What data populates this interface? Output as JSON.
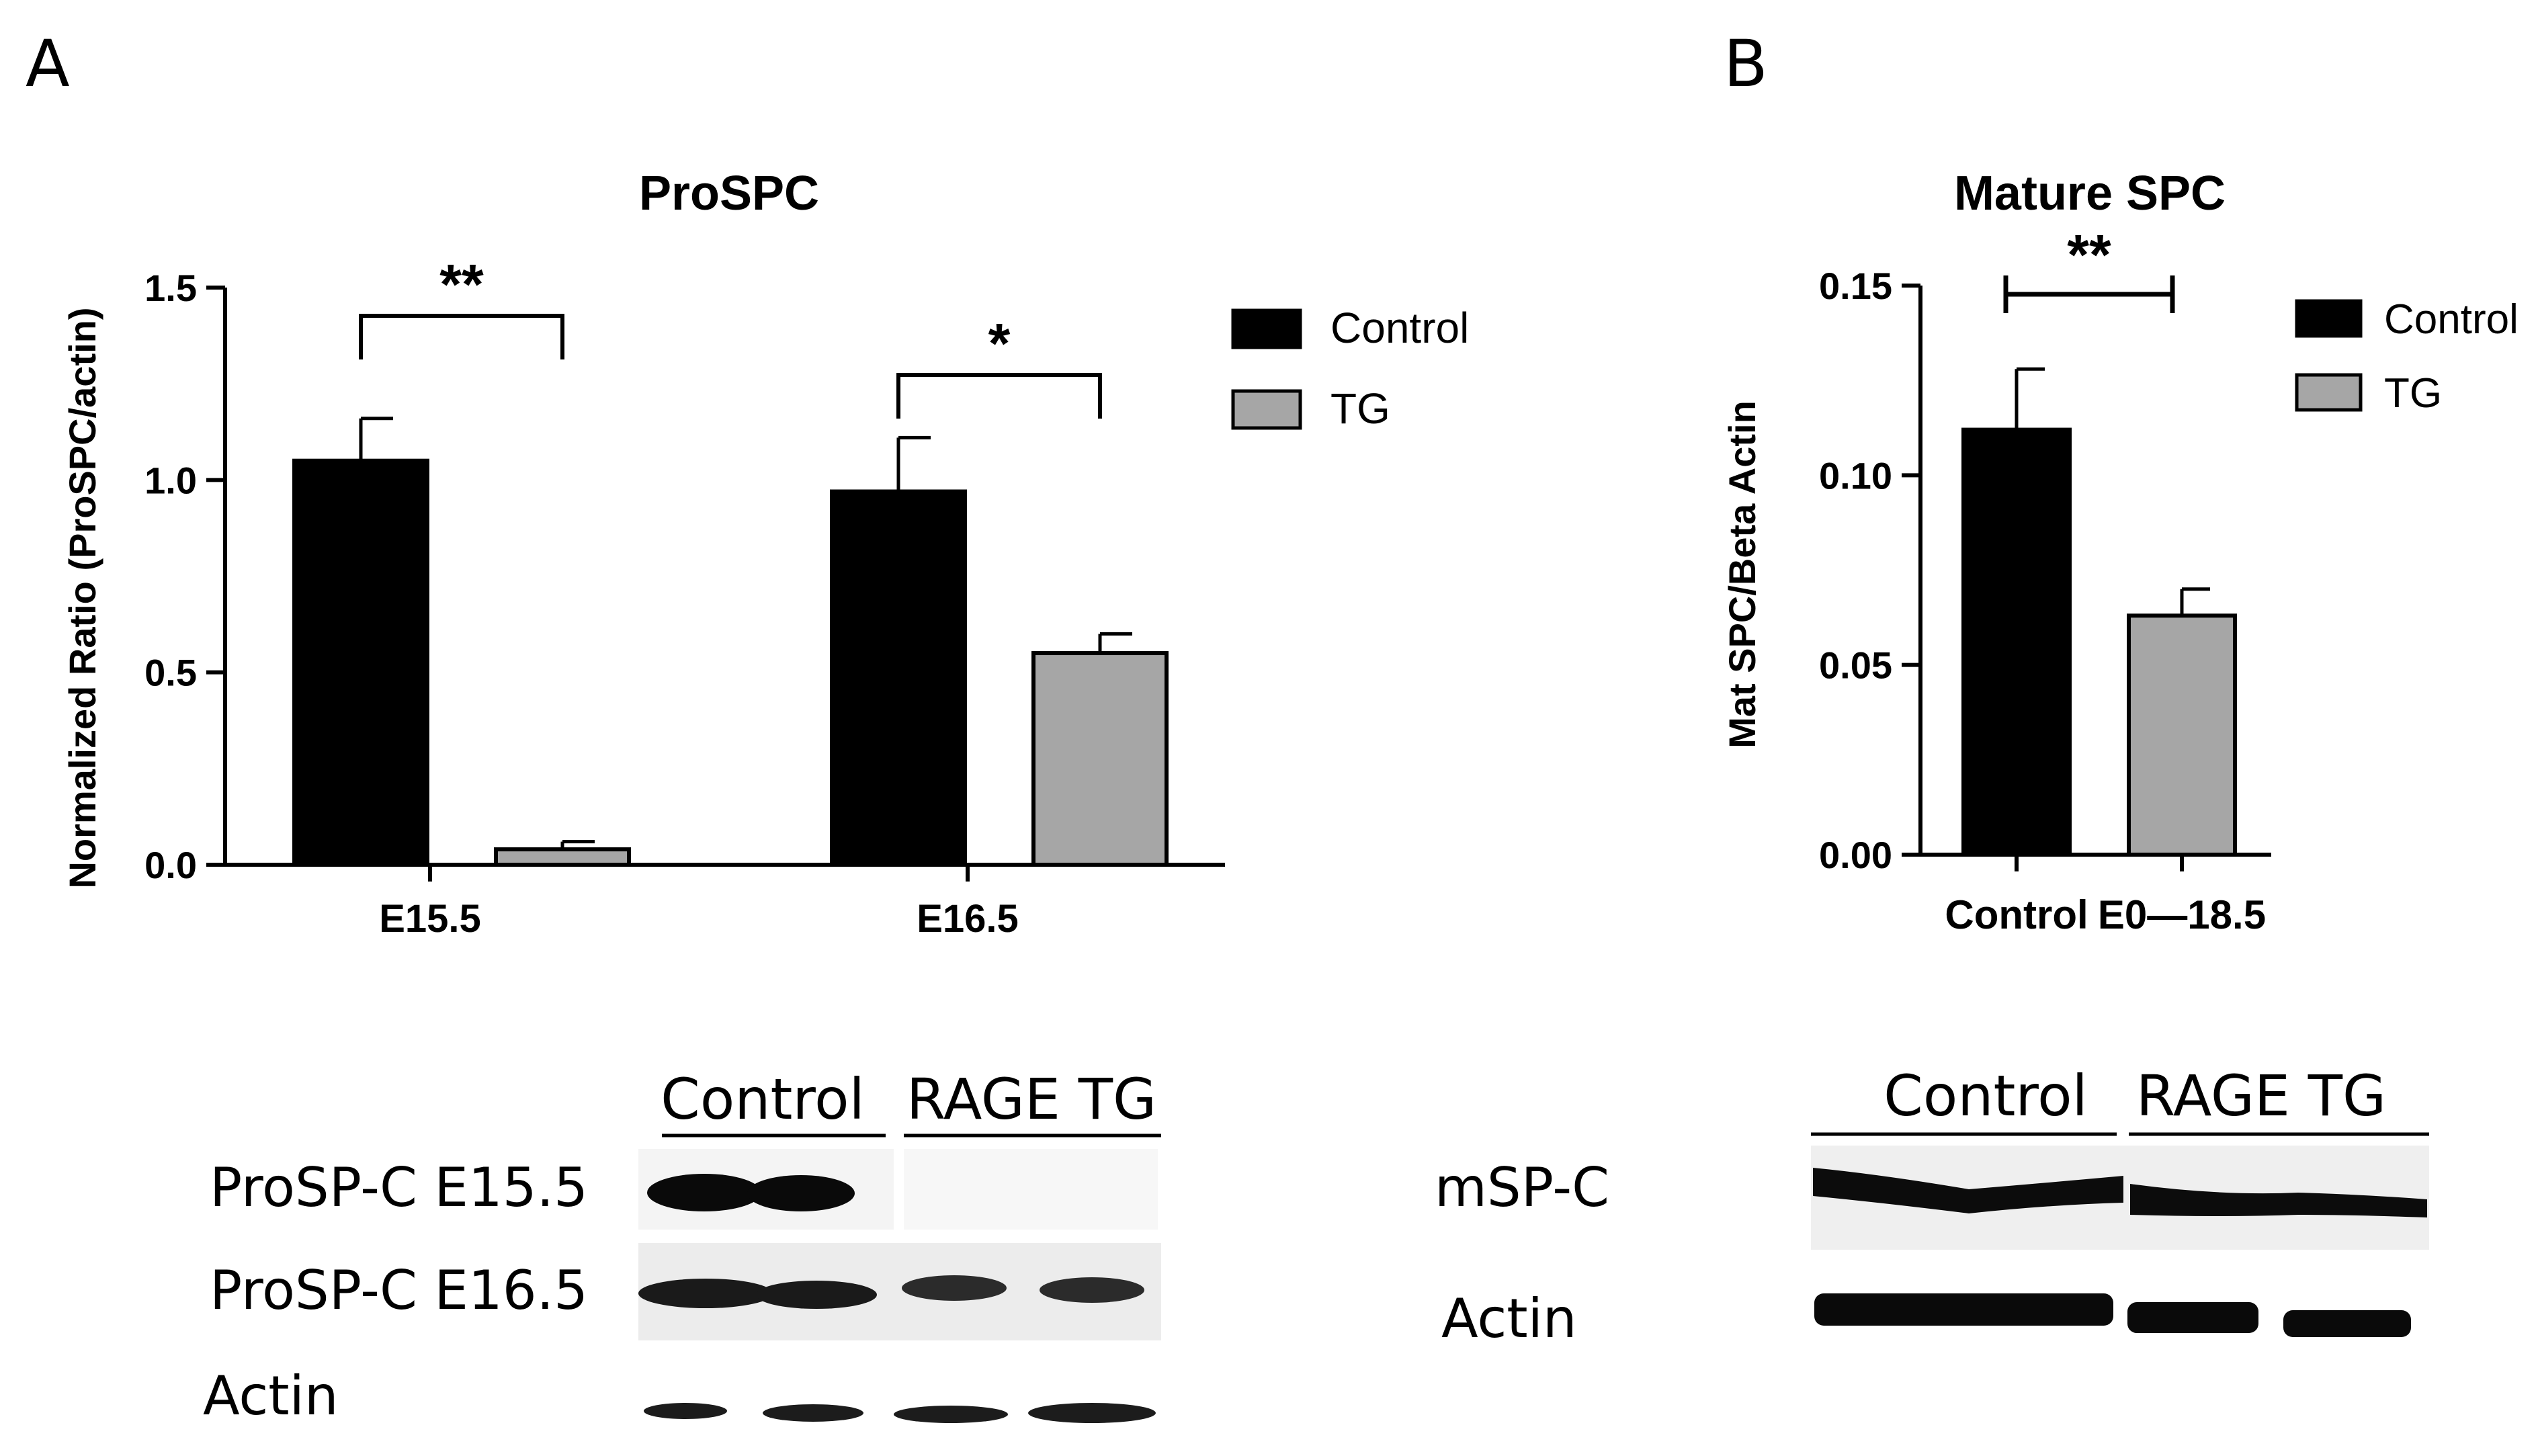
{
  "panels": {
    "A": {
      "label": "A"
    },
    "B": {
      "label": "B"
    }
  },
  "colors": {
    "control": "#000000",
    "tg": "#a6a6a6",
    "axis": "#000000"
  },
  "chart_data": [
    {
      "panel": "A",
      "type": "bar",
      "title": "ProSPC",
      "xlabel": "",
      "ylabel": "Normalized Ratio (ProSPC/actin)",
      "categories": [
        "E15.5",
        "E16.5"
      ],
      "ylim": [
        0,
        1.5
      ],
      "yticks": [
        "0.0",
        "0.5",
        "1.0",
        "1.5"
      ],
      "legend_position": "top-right",
      "series": [
        {
          "name": "Control",
          "values": [
            1.05,
            0.97
          ],
          "errors": [
            0.11,
            0.14
          ]
        },
        {
          "name": "TG",
          "values": [
            0.04,
            0.55
          ],
          "errors": [
            0.02,
            0.05
          ]
        }
      ],
      "significance": [
        {
          "category": "E15.5",
          "label": "**"
        },
        {
          "category": "E16.5",
          "label": "*"
        }
      ]
    },
    {
      "panel": "B",
      "type": "bar",
      "title": "Mature SPC",
      "xlabel": "",
      "ylabel": "Mat SPC/Beta Actin",
      "categories": [
        "Control",
        "E0—18.5"
      ],
      "ylim": [
        0,
        0.15
      ],
      "yticks": [
        "0.00",
        "0.05",
        "0.10",
        "0.15"
      ],
      "legend_position": "top-right",
      "legend": [
        "Control",
        "TG"
      ],
      "values": [
        0.112,
        0.063
      ],
      "errors": [
        0.016,
        0.007
      ],
      "significance": [
        {
          "between": [
            "Control",
            "E0—18.5"
          ],
          "label": "**"
        }
      ]
    }
  ],
  "blots": {
    "A": {
      "group_labels": [
        "Control",
        "RAGE TG"
      ],
      "rows": [
        "ProSP-C E15.5",
        "ProSP-C E16.5",
        "Actin"
      ]
    },
    "B": {
      "group_labels": [
        "Control",
        "RAGE TG"
      ],
      "rows": [
        "mSP-C",
        "Actin"
      ]
    }
  }
}
